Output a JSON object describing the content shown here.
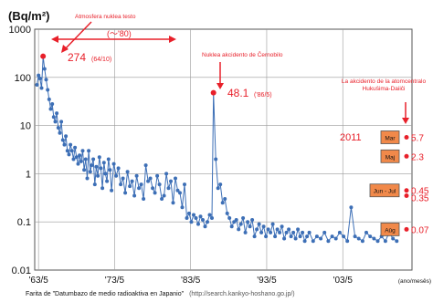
{
  "chart_data": {
    "type": "scatter",
    "title": "",
    "ylabel": "(Bq/m²)",
    "xlabel": "(ano/mesês)",
    "yscale": "log",
    "ylim": [
      0.01,
      1000
    ],
    "xlim": [
      1962.9,
      2012.5
    ],
    "y_ticks": [
      "1000",
      "100",
      "10",
      "1",
      "0.1",
      "0.01"
    ],
    "x_ticks": [
      {
        "label": "'63/5",
        "x": 1963.4
      },
      {
        "label": "'73/5",
        "x": 1973.4
      },
      {
        "label": "'83/5",
        "x": 1983.4
      },
      {
        "label": "'93/5",
        "x": 1993.4
      },
      {
        "label": "'03/5",
        "x": 2003.4
      }
    ],
    "grid": true,
    "legend": "none",
    "colors": {
      "series": "#3d6fb6",
      "annotation": "#e8202a",
      "box": "#f1894a"
    },
    "series": [
      {
        "x": [
          1963.2,
          1963.4,
          1963.6,
          1963.8,
          1964.0,
          1964.2,
          1964.4,
          1964.6,
          1964.8,
          1965.0,
          1965.2,
          1965.4,
          1965.6,
          1965.8,
          1966.0,
          1966.2,
          1966.4,
          1966.6,
          1966.8,
          1967.0,
          1967.2,
          1967.4,
          1967.6,
          1967.8,
          1968.0,
          1968.2,
          1968.4,
          1968.6,
          1968.8,
          1969.0,
          1969.2,
          1969.4,
          1969.6,
          1969.8,
          1970.0,
          1970.2,
          1970.4,
          1970.6,
          1970.8,
          1971.0,
          1971.2,
          1971.4,
          1971.6,
          1971.8,
          1972.0,
          1972.2,
          1972.4,
          1972.6,
          1972.8,
          1973.0,
          1973.3,
          1973.6,
          1973.9,
          1974.2,
          1974.5,
          1974.8,
          1975.1,
          1975.4,
          1975.7,
          1976.0,
          1976.3,
          1976.6,
          1976.9,
          1977.2,
          1977.5,
          1977.8,
          1978.1,
          1978.4,
          1978.7,
          1979.0,
          1979.3,
          1979.6,
          1979.9,
          1980.2,
          1980.5,
          1980.8,
          1981.1,
          1981.4,
          1981.7,
          1982.0,
          1982.3,
          1982.6,
          1982.9,
          1983.2,
          1983.5,
          1983.8,
          1984.1,
          1984.4,
          1984.7,
          1985.0,
          1985.3,
          1985.6,
          1985.9,
          1986.2,
          1986.4,
          1986.7,
          1987.0,
          1987.3,
          1987.6,
          1987.9,
          1988.2,
          1988.5,
          1988.8,
          1989.1,
          1989.4,
          1989.7,
          1990.0,
          1990.3,
          1990.6,
          1990.9,
          1991.2,
          1991.5,
          1991.8,
          1992.1,
          1992.4,
          1992.7,
          1993.0,
          1993.3,
          1993.6,
          1993.9,
          1994.2,
          1994.5,
          1994.8,
          1995.1,
          1995.4,
          1995.7,
          1996.0,
          1996.3,
          1996.6,
          1996.9,
          1997.2,
          1997.5,
          1997.8,
          1998.1,
          1998.4,
          1998.7,
          1999.0,
          1999.5,
          2000.0,
          2000.5,
          2001.0,
          2001.5,
          2002.0,
          2002.5,
          2003.0,
          2003.5,
          2004.0,
          2004.5,
          2005.0,
          2005.5,
          2006.0,
          2006.5,
          2007.0,
          2007.5,
          2008.0,
          2008.5,
          2009.0,
          2009.5,
          2010.0,
          2010.5
        ],
        "y": [
          70,
          110,
          95,
          60,
          274,
          150,
          90,
          55,
          35,
          22,
          28,
          15,
          12,
          18,
          9,
          7,
          12,
          5,
          4,
          6,
          3,
          2.5,
          4,
          3,
          2,
          3.5,
          2.2,
          1.6,
          2.4,
          1.8,
          3,
          1.2,
          2,
          0.8,
          3,
          1.1,
          1.5,
          2,
          0.6,
          1.4,
          0.9,
          2.2,
          1.3,
          0.5,
          1.7,
          1,
          0.7,
          2,
          1.2,
          0.45,
          1.6,
          0.9,
          1.3,
          0.6,
          0.8,
          0.4,
          1.1,
          0.55,
          0.7,
          0.35,
          0.9,
          0.5,
          0.6,
          0.3,
          1.5,
          0.7,
          0.8,
          0.5,
          0.4,
          0.9,
          0.6,
          0.3,
          0.35,
          1,
          0.5,
          0.7,
          0.25,
          0.8,
          0.45,
          0.4,
          0.2,
          0.6,
          0.12,
          0.15,
          0.1,
          0.14,
          0.12,
          0.09,
          0.13,
          0.11,
          0.08,
          0.1,
          0.14,
          0.12,
          48.1,
          2,
          0.5,
          0.6,
          0.25,
          0.3,
          0.15,
          0.12,
          0.08,
          0.1,
          0.11,
          0.07,
          0.09,
          0.12,
          0.06,
          0.1,
          0.08,
          0.11,
          0.05,
          0.07,
          0.09,
          0.06,
          0.08,
          0.05,
          0.07,
          0.06,
          0.09,
          0.05,
          0.07,
          0.06,
          0.08,
          0.045,
          0.06,
          0.07,
          0.05,
          0.06,
          0.045,
          0.07,
          0.05,
          0.06,
          0.04,
          0.05,
          0.06,
          0.04,
          0.05,
          0.045,
          0.06,
          0.04,
          0.05,
          0.045,
          0.06,
          0.05,
          0.04,
          0.2,
          0.05,
          0.045,
          0.04,
          0.06,
          0.05,
          0.045,
          0.04,
          0.05,
          0.04,
          0.06,
          0.045,
          0.04
        ]
      }
    ],
    "annotations": [
      {
        "text": "Atmosfera nuklea testo",
        "x": 1964.0,
        "y": 274
      },
      {
        "text": "274",
        "detail": "(64/10)",
        "x": 1964.0,
        "y": 274
      },
      {
        "text": "(～'80)"
      },
      {
        "text": "Nuklea akcidento de Ĉernobilo",
        "x": 1986.4,
        "y": 48.1
      },
      {
        "text": "48.1",
        "detail": "('86/5)",
        "x": 1986.4,
        "y": 48.1
      },
      {
        "text": "La akcidento de la atomcentralo Hukuŝima-Daiiĉi",
        "x": 2011.3,
        "y": 5.7
      },
      {
        "text": "2011"
      }
    ],
    "points_2011": [
      {
        "label": "Mar",
        "value": "5.7",
        "y": 5.7
      },
      {
        "label": "Maj",
        "value": "2.3",
        "y": 2.3
      },
      {
        "label": "Jun - Jul",
        "value": "0.45",
        "value2": "0.35",
        "y": 0.45,
        "y2": 0.35
      },
      {
        "label": "Aŭg",
        "value": "0.07",
        "y": 0.07
      }
    ],
    "source": "Farita de \"Datumbazo de medio radioaktiva en Japanio\"",
    "source_url": "(http://search.kankyo-hoshano.go.jp/)"
  }
}
